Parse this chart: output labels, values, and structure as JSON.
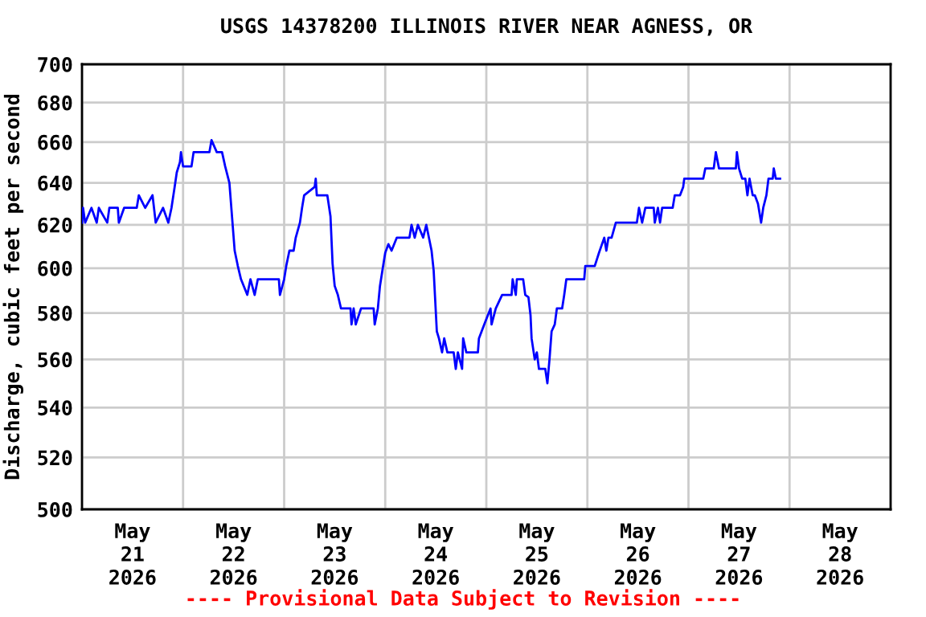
{
  "chart_data": {
    "type": "line",
    "title": "USGS 14378200 ILLINOIS RIVER NEAR AGNESS, OR",
    "ylabel": "Discharge, cubic feet per second",
    "annotations": [
      "---- Provisional Data Subject to Revision ----"
    ],
    "log": "y",
    "grid": true,
    "marker": "none",
    "line_style": "solid",
    "xlim": [
      "2026-05-21T00:00",
      "2026-05-29T00:00"
    ],
    "ylim": [
      500,
      700
    ],
    "yticks": [
      500,
      520,
      540,
      560,
      580,
      600,
      620,
      640,
      660,
      680,
      700
    ],
    "xticks": [
      {
        "value": "2026-05-21T00:00",
        "label": null
      },
      {
        "value": "2026-05-21T12:00",
        "label": "May\n21\n2026"
      },
      {
        "value": "2026-05-22T00:00",
        "label": null
      },
      {
        "value": "2026-05-22T12:00",
        "label": "May\n22\n2026"
      },
      {
        "value": "2026-05-23T00:00",
        "label": null
      },
      {
        "value": "2026-05-23T12:00",
        "label": "May\n23\n2026"
      },
      {
        "value": "2026-05-24T00:00",
        "label": null
      },
      {
        "value": "2026-05-24T12:00",
        "label": "May\n24\n2026"
      },
      {
        "value": "2026-05-25T00:00",
        "label": null
      },
      {
        "value": "2026-05-25T12:00",
        "label": "May\n25\n2026"
      },
      {
        "value": "2026-05-26T00:00",
        "label": null
      },
      {
        "value": "2026-05-26T12:00",
        "label": "May\n26\n2026"
      },
      {
        "value": "2026-05-27T00:00",
        "label": null
      },
      {
        "value": "2026-05-27T12:00",
        "label": "May\n27\n2026"
      },
      {
        "value": "2026-05-28T00:00",
        "label": null
      },
      {
        "value": "2026-05-28T12:00",
        "label": "May\n28\n2026"
      },
      {
        "value": "2026-05-29T00:00",
        "label": null
      }
    ],
    "series": [
      {
        "color": "#0000ff",
        "x": [
          "2026-05-21T00:00",
          "2026-05-21T00:15",
          "2026-05-21T00:45",
          "2026-05-21T02:15",
          "2026-05-21T03:30",
          "2026-05-21T04:00",
          "2026-05-21T06:00",
          "2026-05-21T06:30",
          "2026-05-21T08:30",
          "2026-05-21T08:45",
          "2026-05-21T10:00",
          "2026-05-21T13:00",
          "2026-05-21T13:30",
          "2026-05-21T15:00",
          "2026-05-21T16:45",
          "2026-05-21T17:30",
          "2026-05-21T19:15",
          "2026-05-21T20:30",
          "2026-05-21T21:15",
          "2026-05-21T22:00",
          "2026-05-21T22:30",
          "2026-05-21T23:15",
          "2026-05-21T23:30",
          "2026-05-22T00:00",
          "2026-05-22T02:00",
          "2026-05-22T02:30",
          "2026-05-22T06:15",
          "2026-05-22T06:45",
          "2026-05-22T08:00",
          "2026-05-22T09:15",
          "2026-05-22T10:00",
          "2026-05-22T11:00",
          "2026-05-22T11:30",
          "2026-05-22T12:15",
          "2026-05-22T13:00",
          "2026-05-22T13:45",
          "2026-05-22T15:15",
          "2026-05-22T16:00",
          "2026-05-22T17:00",
          "2026-05-22T17:45",
          "2026-05-22T22:45",
          "2026-05-22T23:00",
          "2026-05-23T00:00",
          "2026-05-23T00:30",
          "2026-05-23T01:15",
          "2026-05-23T02:15",
          "2026-05-23T02:45",
          "2026-05-23T03:45",
          "2026-05-23T04:15",
          "2026-05-23T04:45",
          "2026-05-23T07:15",
          "2026-05-23T07:30",
          "2026-05-23T07:45",
          "2026-05-23T10:15",
          "2026-05-23T11:00",
          "2026-05-23T11:30",
          "2026-05-23T12:00",
          "2026-05-23T12:45",
          "2026-05-23T13:30",
          "2026-05-23T15:45",
          "2026-05-23T16:00",
          "2026-05-23T16:30",
          "2026-05-23T17:00",
          "2026-05-23T18:15",
          "2026-05-23T21:15",
          "2026-05-23T21:30",
          "2026-05-23T22:15",
          "2026-05-23T22:45",
          "2026-05-23T23:30",
          "2026-05-24T00:00",
          "2026-05-24T00:45",
          "2026-05-24T01:30",
          "2026-05-24T02:45",
          "2026-05-24T05:45",
          "2026-05-24T06:15",
          "2026-05-24T07:00",
          "2026-05-24T07:45",
          "2026-05-24T09:00",
          "2026-05-24T09:45",
          "2026-05-24T11:00",
          "2026-05-24T11:30",
          "2026-05-24T12:15",
          "2026-05-24T12:45",
          "2026-05-24T13:30",
          "2026-05-24T14:00",
          "2026-05-24T14:45",
          "2026-05-24T16:15",
          "2026-05-24T16:45",
          "2026-05-24T17:15",
          "2026-05-24T18:15",
          "2026-05-24T18:30",
          "2026-05-24T19:15",
          "2026-05-24T22:00",
          "2026-05-24T22:15",
          "2026-05-24T23:30",
          "2026-05-25T01:00",
          "2026-05-25T01:15",
          "2026-05-25T02:15",
          "2026-05-25T03:45",
          "2026-05-25T06:00",
          "2026-05-25T06:15",
          "2026-05-25T07:00",
          "2026-05-25T07:15",
          "2026-05-25T08:45",
          "2026-05-25T09:15",
          "2026-05-25T10:00",
          "2026-05-25T10:30",
          "2026-05-25T10:45",
          "2026-05-25T11:30",
          "2026-05-25T12:00",
          "2026-05-25T12:30",
          "2026-05-25T14:00",
          "2026-05-25T14:30",
          "2026-05-25T15:00",
          "2026-05-25T15:30",
          "2026-05-25T16:15",
          "2026-05-25T16:45",
          "2026-05-25T18:00",
          "2026-05-25T18:30",
          "2026-05-25T19:00",
          "2026-05-25T23:15",
          "2026-05-25T23:30",
          "2026-05-26T01:45",
          "2026-05-26T02:45",
          "2026-05-26T04:00",
          "2026-05-26T04:30",
          "2026-05-26T05:00",
          "2026-05-26T05:45",
          "2026-05-26T06:45",
          "2026-05-26T11:45",
          "2026-05-26T12:15",
          "2026-05-26T13:00",
          "2026-05-26T13:45",
          "2026-05-26T15:45",
          "2026-05-26T16:00",
          "2026-05-26T16:45",
          "2026-05-26T17:15",
          "2026-05-26T17:45",
          "2026-05-26T20:15",
          "2026-05-26T20:45",
          "2026-05-26T22:00",
          "2026-05-26T22:45",
          "2026-05-26T23:00",
          "2026-05-27T03:30",
          "2026-05-27T04:00",
          "2026-05-27T06:00",
          "2026-05-27T06:30",
          "2026-05-27T07:15",
          "2026-05-27T11:15",
          "2026-05-27T11:30",
          "2026-05-27T12:00",
          "2026-05-27T12:45",
          "2026-05-27T13:30",
          "2026-05-27T14:00",
          "2026-05-27T14:30",
          "2026-05-27T15:15",
          "2026-05-27T15:45",
          "2026-05-27T16:30",
          "2026-05-27T17:15",
          "2026-05-27T17:45",
          "2026-05-27T18:30",
          "2026-05-27T19:00",
          "2026-05-27T20:00",
          "2026-05-27T20:15",
          "2026-05-27T20:45",
          "2026-05-27T21:45"
        ],
        "values": [
          621,
          628,
          621,
          628,
          621,
          628,
          621,
          628,
          628,
          621,
          628,
          628,
          634,
          628,
          634,
          621,
          628,
          621,
          628,
          638,
          645,
          650,
          655,
          648,
          648,
          655,
          655,
          661,
          655,
          655,
          648,
          640,
          627,
          608,
          601,
          595,
          588,
          595,
          588,
          595,
          595,
          588,
          595,
          601,
          608,
          608,
          614,
          621,
          628,
          634,
          638,
          642,
          634,
          634,
          624,
          602,
          592,
          588,
          582,
          582,
          575,
          582,
          575,
          582,
          582,
          575,
          582,
          592,
          601,
          607,
          611,
          608,
          614,
          614,
          620,
          614,
          620,
          614,
          620,
          608,
          599,
          572,
          569,
          563,
          569,
          563,
          563,
          556,
          563,
          556,
          569,
          563,
          563,
          569,
          575,
          582,
          575,
          582,
          588,
          588,
          595,
          588,
          595,
          595,
          588,
          587,
          579,
          569,
          560,
          563,
          556,
          556,
          550,
          560,
          572,
          575,
          582,
          582,
          588,
          595,
          595,
          601,
          601,
          607,
          614,
          608,
          614,
          614,
          621,
          621,
          628,
          621,
          628,
          628,
          621,
          628,
          621,
          628,
          628,
          634,
          634,
          638,
          642,
          642,
          647,
          647,
          655,
          647,
          647,
          655,
          647,
          642,
          642,
          634,
          642,
          634,
          634,
          630,
          621,
          628,
          634,
          642,
          642,
          647,
          642,
          642
        ]
      }
    ]
  }
}
